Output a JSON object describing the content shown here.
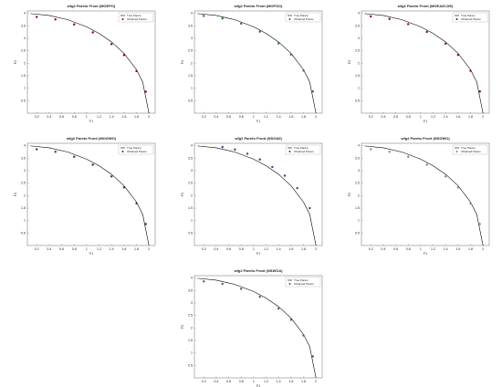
{
  "chart_data": [
    {
      "type": "scatter",
      "title": "wfg2 Pareto Front (MOEPO)",
      "xlabel": "F1",
      "ylabel": "F2",
      "xlim": [
        0.05,
        2.1
      ],
      "ylim": [
        0,
        4.1
      ],
      "xticks": [
        0.2,
        0.4,
        0.6,
        0.8,
        1,
        1.2,
        1.4,
        1.6,
        1.8,
        2
      ],
      "yticks": [
        0.5,
        1,
        1.5,
        2,
        2.5,
        3,
        3.5,
        4
      ],
      "legend": "upper right",
      "series": [
        {
          "name": "True Pareto",
          "color": "#000000",
          "style": "line",
          "x": [
            0.1,
            0.4,
            0.7,
            1.0,
            1.2,
            1.4,
            1.6,
            1.8,
            1.9,
            2.0
          ],
          "values": [
            3.995,
            3.919,
            3.747,
            3.464,
            3.2,
            2.857,
            2.4,
            1.744,
            1.249,
            0
          ]
        },
        {
          "name": "Obtained Pareto",
          "color": "#8b0000",
          "style": "marker",
          "x": [
            0.2,
            0.5,
            0.8,
            1.1,
            1.4,
            1.6,
            1.8,
            1.95
          ],
          "values": [
            3.86,
            3.76,
            3.56,
            3.24,
            2.77,
            2.33,
            1.69,
            0.86
          ]
        }
      ]
    },
    {
      "type": "scatter",
      "title": "wfg2 Pareto Front (MOPSO)",
      "xlabel": "F1",
      "ylabel": "F2",
      "xlim": [
        0.05,
        2.1
      ],
      "ylim": [
        0,
        4.1
      ],
      "xticks": [
        0.2,
        0.4,
        0.6,
        0.8,
        1,
        1.2,
        1.4,
        1.6,
        1.8,
        2
      ],
      "yticks": [
        0.5,
        1,
        1.5,
        2,
        2.5,
        3,
        3.5,
        4
      ],
      "legend": "upper right",
      "series": [
        {
          "name": "True Pareto",
          "color": "#000000",
          "style": "line",
          "x": [
            0.1,
            0.4,
            0.7,
            1.0,
            1.2,
            1.4,
            1.6,
            1.8,
            1.9,
            2.0
          ],
          "values": [
            3.995,
            3.919,
            3.747,
            3.464,
            3.2,
            2.857,
            2.4,
            1.744,
            1.249,
            0
          ]
        },
        {
          "name": "Obtained Pareto",
          "color": "#1a7a1a",
          "style": "marker",
          "x": [
            0.2,
            0.5,
            0.8,
            1.1,
            1.4,
            1.6,
            1.8,
            1.95
          ],
          "values": [
            3.9,
            3.8,
            3.59,
            3.27,
            2.8,
            2.35,
            1.71,
            0.87
          ]
        }
      ]
    },
    {
      "type": "scatter",
      "title": "wfg2 Pareto Front (MOEA/D-DE)",
      "xlabel": "F1",
      "ylabel": "F2",
      "xlim": [
        0.05,
        2.1
      ],
      "ylim": [
        0,
        4.1
      ],
      "xticks": [
        0.2,
        0.4,
        0.6,
        0.8,
        1,
        1.2,
        1.4,
        1.6,
        1.8,
        2
      ],
      "yticks": [
        0.5,
        1,
        1.5,
        2,
        2.5,
        3,
        3.5,
        4
      ],
      "legend": "upper right",
      "series": [
        {
          "name": "True Pareto",
          "color": "#000000",
          "style": "line",
          "x": [
            0.1,
            0.4,
            0.7,
            1.0,
            1.2,
            1.4,
            1.6,
            1.8,
            1.9,
            2.0
          ],
          "values": [
            3.995,
            3.919,
            3.747,
            3.464,
            3.2,
            2.857,
            2.4,
            1.744,
            1.249,
            0
          ]
        },
        {
          "name": "Obtained Pareto",
          "color": "#7a1010",
          "style": "marker",
          "x": [
            0.2,
            0.5,
            0.8,
            1.1,
            1.4,
            1.6,
            1.8,
            1.95
          ],
          "values": [
            3.88,
            3.78,
            3.57,
            3.26,
            2.79,
            2.34,
            1.7,
            0.87
          ]
        }
      ]
    },
    {
      "type": "scatter",
      "title": "wfg2 Pareto Front (MOGWO)",
      "xlabel": "F1",
      "ylabel": "F2",
      "xlim": [
        0.05,
        2.1
      ],
      "ylim": [
        0,
        4.1
      ],
      "xticks": [
        0.2,
        0.4,
        0.6,
        0.8,
        1,
        1.2,
        1.4,
        1.6,
        1.8,
        2
      ],
      "yticks": [
        0.5,
        1,
        1.5,
        2,
        2.5,
        3,
        3.5,
        4
      ],
      "legend": "upper right",
      "series": [
        {
          "name": "True Pareto",
          "color": "#000000",
          "style": "line",
          "x": [
            0.1,
            0.4,
            0.7,
            1.0,
            1.2,
            1.4,
            1.6,
            1.8,
            1.9,
            2.0
          ],
          "values": [
            3.995,
            3.919,
            3.747,
            3.464,
            3.2,
            2.857,
            2.4,
            1.744,
            1.249,
            0
          ]
        },
        {
          "name": "Obtained Pareto",
          "color": "#5a2a1a",
          "style": "marker",
          "x": [
            0.2,
            0.5,
            0.8,
            1.1,
            1.4,
            1.6,
            1.8,
            1.95
          ],
          "values": [
            3.86,
            3.76,
            3.56,
            3.24,
            2.77,
            2.33,
            1.69,
            0.86
          ]
        }
      ]
    },
    {
      "type": "scatter",
      "title": "wfg2 Pareto Front (NSGAII)",
      "xlabel": "F1",
      "ylabel": "F2",
      "xlim": [
        0.05,
        2.1
      ],
      "ylim": [
        0,
        4.1
      ],
      "xticks": [
        0.2,
        0.4,
        0.6,
        0.8,
        1,
        1.2,
        1.4,
        1.6,
        1.8,
        2
      ],
      "yticks": [
        0.5,
        1,
        1.5,
        2,
        2.5,
        3,
        3.5,
        4
      ],
      "legend": "upper right",
      "series": [
        {
          "name": "True Pareto",
          "color": "#000000",
          "style": "line",
          "x": [
            0.1,
            0.4,
            0.7,
            1.0,
            1.2,
            1.4,
            1.6,
            1.8,
            1.9,
            2.0
          ],
          "values": [
            3.995,
            3.919,
            3.747,
            3.464,
            3.2,
            2.857,
            2.4,
            1.744,
            1.249,
            0
          ]
        },
        {
          "name": "Obtained Pareto",
          "color": "#5b2c83",
          "style": "marker",
          "x": [
            0.5,
            0.7,
            0.9,
            1.1,
            1.3,
            1.5,
            1.7,
            1.9
          ],
          "values": [
            3.95,
            3.85,
            3.68,
            3.45,
            3.15,
            2.8,
            2.3,
            1.5
          ]
        }
      ]
    },
    {
      "type": "scatter",
      "title": "wfg2 Pareto Front (NSGWO)",
      "xlabel": "F1",
      "ylabel": "F2",
      "xlim": [
        0.05,
        2.1
      ],
      "ylim": [
        0,
        4.1
      ],
      "xticks": [
        0.2,
        0.4,
        0.6,
        0.8,
        1,
        1.2,
        1.4,
        1.6,
        1.8,
        2
      ],
      "yticks": [
        0.5,
        1,
        1.5,
        2,
        2.5,
        3,
        3.5,
        4
      ],
      "legend": "upper right",
      "series": [
        {
          "name": "True Pareto",
          "color": "#000000",
          "style": "line",
          "x": [
            0.1,
            0.4,
            0.7,
            1.0,
            1.2,
            1.4,
            1.6,
            1.8,
            1.9,
            2.0
          ],
          "values": [
            3.995,
            3.919,
            3.747,
            3.464,
            3.2,
            2.857,
            2.4,
            1.744,
            1.249,
            0
          ]
        },
        {
          "name": "Obtained Pareto",
          "color": "#a070b0",
          "style": "marker",
          "x": [
            0.2,
            0.5,
            0.8,
            1.1,
            1.4,
            1.6,
            1.8,
            1.95
          ],
          "values": [
            3.86,
            3.76,
            3.56,
            3.24,
            2.77,
            2.33,
            1.69,
            0.86
          ]
        }
      ]
    },
    {
      "type": "scatter",
      "title": "wfg2 Pareto Front (NSWOA)",
      "xlabel": "F1",
      "ylabel": "F2",
      "xlim": [
        0.05,
        2.1
      ],
      "ylim": [
        0,
        4.1
      ],
      "xticks": [
        0.2,
        0.4,
        0.6,
        0.8,
        1,
        1.2,
        1.4,
        1.6,
        1.8,
        2
      ],
      "yticks": [
        0.5,
        1,
        1.5,
        2,
        2.5,
        3,
        3.5,
        4
      ],
      "legend": "upper right",
      "series": [
        {
          "name": "True Pareto",
          "color": "#000000",
          "style": "line",
          "x": [
            0.1,
            0.4,
            0.7,
            1.0,
            1.2,
            1.4,
            1.6,
            1.8,
            1.9,
            2.0
          ],
          "values": [
            3.995,
            3.919,
            3.747,
            3.464,
            3.2,
            2.857,
            2.4,
            1.744,
            1.249,
            0
          ]
        },
        {
          "name": "Obtained Pareto",
          "color": "#555555",
          "style": "marker",
          "x": [
            0.2,
            0.5,
            0.8,
            1.1,
            1.4,
            1.6,
            1.8,
            1.95
          ],
          "values": [
            3.87,
            3.77,
            3.57,
            3.25,
            2.78,
            2.33,
            1.7,
            0.86
          ]
        }
      ]
    }
  ]
}
